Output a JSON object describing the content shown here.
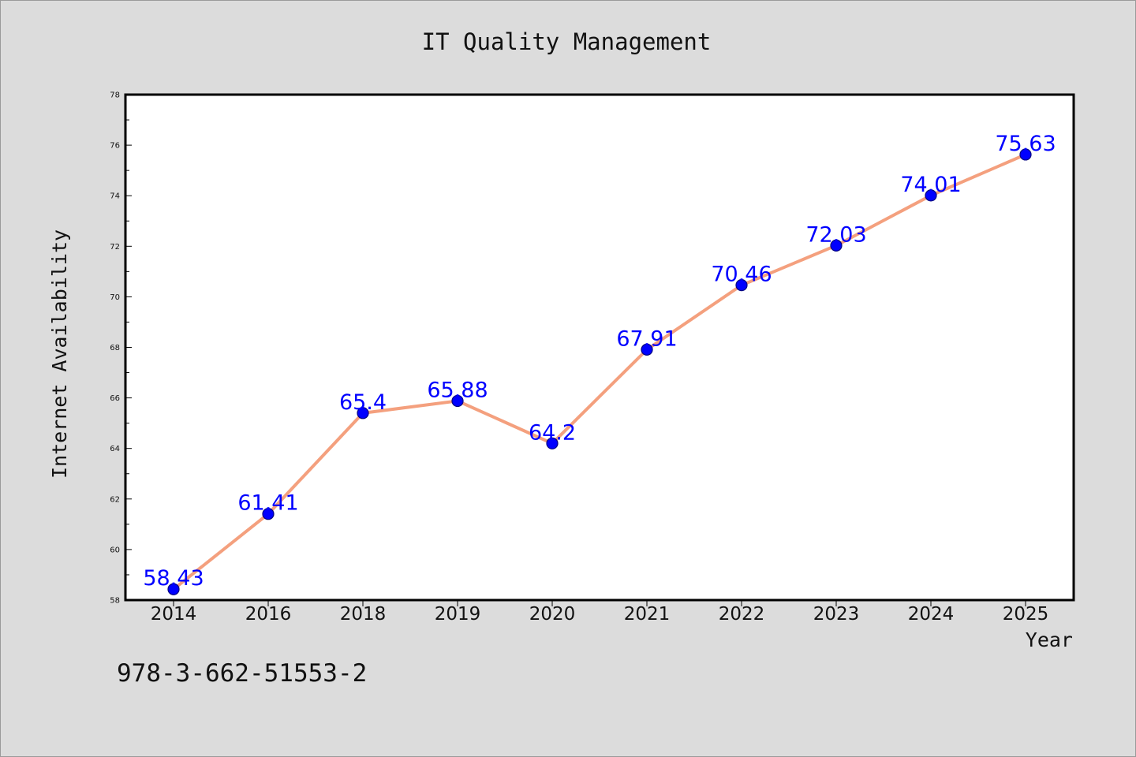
{
  "chart_data": {
    "type": "line",
    "title": "IT Quality Management",
    "xlabel": "Year",
    "ylabel": "Internet Availability",
    "categories": [
      "2014",
      "2016",
      "2018",
      "2019",
      "2020",
      "2021",
      "2022",
      "2023",
      "2024",
      "2025"
    ],
    "series": [
      {
        "values": [
          58.43,
          61.41,
          65.4,
          65.88,
          64.2,
          67.91,
          70.46,
          72.03,
          74.01,
          75.63
        ],
        "data_labels": [
          "58.43",
          "61.41",
          "65.4",
          "65.88",
          "64.2",
          "67.91",
          "70.46",
          "72.03",
          "74.01",
          "75.63"
        ]
      }
    ],
    "ylim": [
      58,
      78
    ],
    "yticks": [
      "58",
      "60",
      "62",
      "64",
      "66",
      "68",
      "70",
      "72",
      "74",
      "76",
      "78"
    ],
    "grid": false,
    "legend": "none",
    "colors": {
      "line": "#f4a07e",
      "marker": "#0000ff",
      "marker_edge": "#000080",
      "data_label": "#0000ff",
      "plot_background": "#ffffff",
      "figure_background": "#dcdcdc"
    }
  },
  "footer": {
    "isbn": "978-3-662-51553-2"
  }
}
